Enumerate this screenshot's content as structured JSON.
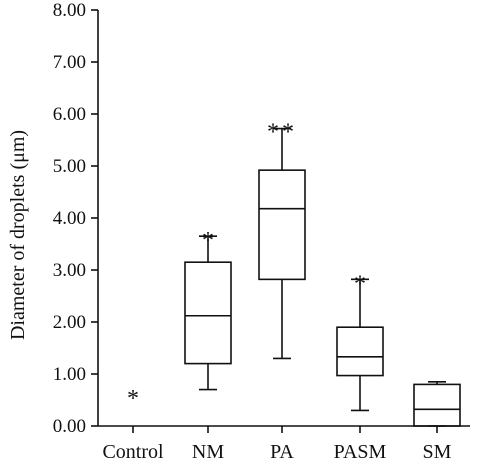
{
  "chart_data": {
    "type": "box",
    "ylabel": "Diameter of droplets (μm)",
    "xlabel": "",
    "ylim": [
      0,
      8
    ],
    "yticks": [
      "0.00",
      "1.00",
      "2.00",
      "3.00",
      "4.00",
      "5.00",
      "6.00",
      "7.00",
      "8.00"
    ],
    "grid": false,
    "categories": [
      "Control",
      "NM",
      "PA",
      "PASM",
      "SM"
    ],
    "boxes": [
      {
        "category": "Control",
        "min": null,
        "q1": null,
        "median": null,
        "q3": null,
        "max": null,
        "annotation": "*"
      },
      {
        "category": "NM",
        "min": 0.7,
        "q1": 1.2,
        "median": 2.12,
        "q3": 3.15,
        "max": 3.65,
        "annotation": "*"
      },
      {
        "category": "PA",
        "min": 1.3,
        "q1": 2.82,
        "median": 4.18,
        "q3": 4.92,
        "max": 5.72,
        "annotation": "**"
      },
      {
        "category": "PASM",
        "min": 0.3,
        "q1": 0.97,
        "median": 1.33,
        "q3": 1.9,
        "max": 2.82,
        "annotation": "*"
      },
      {
        "category": "SM",
        "min": 0.0,
        "q1": 0.0,
        "median": 0.32,
        "q3": 0.8,
        "max": 0.85,
        "annotation": ""
      }
    ]
  }
}
